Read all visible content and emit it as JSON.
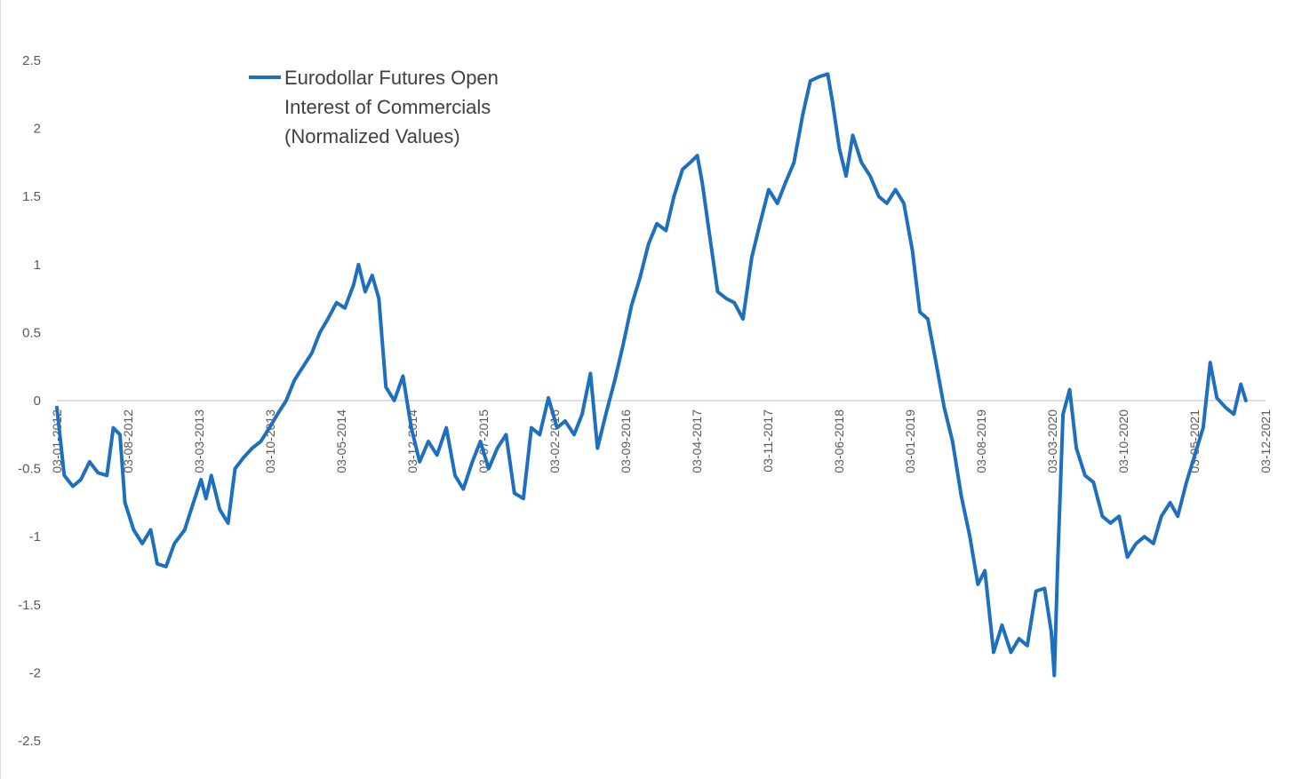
{
  "chart_data": {
    "type": "line",
    "title": "",
    "xlabel": "",
    "ylabel": "",
    "ylim": [
      -2.5,
      2.5
    ],
    "yticks": [
      "2.5",
      "2",
      "1.5",
      "1",
      "0.5",
      "0",
      "-0.5",
      "-1",
      "-1.5",
      "-2",
      "-2.5"
    ],
    "xticks": [
      "03-01-2012",
      "03-08-2012",
      "03-03-2013",
      "03-10-2013",
      "03-05-2014",
      "03-12-2014",
      "03-07-2015",
      "03-02-2016",
      "03-09-2016",
      "03-04-2017",
      "03-11-2017",
      "03-06-2018",
      "03-01-2019",
      "03-08-2019",
      "03-03-2020",
      "03-10-2020",
      "03-05-2021",
      "03-12-2021"
    ],
    "xlim": [
      "2012-01-03",
      "2021-12-03"
    ],
    "grid": false,
    "legend": {
      "position": "top-left",
      "lines": [
        "Eurodollar Futures Open",
        "Interest of Commercials",
        "(Normalized Values)"
      ]
    },
    "series": [
      {
        "name": "Eurodollar Futures Open Interest of Commercials (Normalized Values)",
        "color": "#1f6fbf",
        "points": [
          [
            "2012-01-03",
            -0.05
          ],
          [
            "2012-01-25",
            -0.55
          ],
          [
            "2012-02-20",
            -0.63
          ],
          [
            "2012-03-15",
            -0.58
          ],
          [
            "2012-04-10",
            -0.45
          ],
          [
            "2012-05-05",
            -0.53
          ],
          [
            "2012-06-01",
            -0.55
          ],
          [
            "2012-06-20",
            -0.2
          ],
          [
            "2012-07-10",
            -0.25
          ],
          [
            "2012-07-25",
            -0.75
          ],
          [
            "2012-08-20",
            -0.95
          ],
          [
            "2012-09-15",
            -1.05
          ],
          [
            "2012-10-10",
            -0.95
          ],
          [
            "2012-10-30",
            -1.2
          ],
          [
            "2012-11-25",
            -1.22
          ],
          [
            "2012-12-20",
            -1.05
          ],
          [
            "2013-01-20",
            -0.95
          ],
          [
            "2013-02-15",
            -0.75
          ],
          [
            "2013-03-10",
            -0.58
          ],
          [
            "2013-03-25",
            -0.72
          ],
          [
            "2013-04-10",
            -0.55
          ],
          [
            "2013-05-05",
            -0.8
          ],
          [
            "2013-05-30",
            -0.9
          ],
          [
            "2013-06-20",
            -0.5
          ],
          [
            "2013-07-15",
            -0.42
          ],
          [
            "2013-08-10",
            -0.35
          ],
          [
            "2013-09-05",
            -0.3
          ],
          [
            "2013-10-01",
            -0.2
          ],
          [
            "2013-10-25",
            -0.1
          ],
          [
            "2013-11-20",
            0.0
          ],
          [
            "2013-12-15",
            0.15
          ],
          [
            "2014-01-10",
            0.25
          ],
          [
            "2014-02-05",
            0.35
          ],
          [
            "2014-03-01",
            0.5
          ],
          [
            "2014-03-25",
            0.6
          ],
          [
            "2014-04-20",
            0.72
          ],
          [
            "2014-05-15",
            0.68
          ],
          [
            "2014-06-10",
            0.85
          ],
          [
            "2014-06-25",
            1.0
          ],
          [
            "2014-07-15",
            0.8
          ],
          [
            "2014-08-05",
            0.92
          ],
          [
            "2014-08-25",
            0.75
          ],
          [
            "2014-09-15",
            0.1
          ],
          [
            "2014-10-10",
            0.0
          ],
          [
            "2014-11-05",
            0.18
          ],
          [
            "2014-11-30",
            -0.2
          ],
          [
            "2014-12-25",
            -0.45
          ],
          [
            "2015-01-20",
            -0.3
          ],
          [
            "2015-02-15",
            -0.4
          ],
          [
            "2015-03-15",
            -0.2
          ],
          [
            "2015-04-10",
            -0.55
          ],
          [
            "2015-05-05",
            -0.65
          ],
          [
            "2015-06-01",
            -0.45
          ],
          [
            "2015-06-25",
            -0.3
          ],
          [
            "2015-07-20",
            -0.5
          ],
          [
            "2015-08-15",
            -0.35
          ],
          [
            "2015-09-10",
            -0.25
          ],
          [
            "2015-10-05",
            -0.68
          ],
          [
            "2015-11-01",
            -0.72
          ],
          [
            "2015-11-25",
            -0.2
          ],
          [
            "2015-12-20",
            -0.25
          ],
          [
            "2016-01-15",
            0.02
          ],
          [
            "2016-02-10",
            -0.2
          ],
          [
            "2016-03-05",
            -0.15
          ],
          [
            "2016-04-01",
            -0.25
          ],
          [
            "2016-04-25",
            -0.1
          ],
          [
            "2016-05-20",
            0.2
          ],
          [
            "2016-06-10",
            -0.35
          ],
          [
            "2016-07-05",
            -0.1
          ],
          [
            "2016-08-01",
            0.15
          ],
          [
            "2016-08-25",
            0.4
          ],
          [
            "2016-09-20",
            0.7
          ],
          [
            "2016-10-15",
            0.9
          ],
          [
            "2016-11-10",
            1.15
          ],
          [
            "2016-12-05",
            1.3
          ],
          [
            "2017-01-01",
            1.25
          ],
          [
            "2017-01-25",
            1.5
          ],
          [
            "2017-02-20",
            1.7
          ],
          [
            "2017-03-15",
            1.75
          ],
          [
            "2017-04-05",
            1.8
          ],
          [
            "2017-04-20",
            1.6
          ],
          [
            "2017-05-10",
            1.25
          ],
          [
            "2017-06-05",
            0.8
          ],
          [
            "2017-07-01",
            0.75
          ],
          [
            "2017-07-25",
            0.72
          ],
          [
            "2017-08-20",
            0.6
          ],
          [
            "2017-09-15",
            1.05
          ],
          [
            "2017-10-10",
            1.3
          ],
          [
            "2017-11-05",
            1.55
          ],
          [
            "2017-12-01",
            1.45
          ],
          [
            "2017-12-25",
            1.6
          ],
          [
            "2018-01-20",
            1.75
          ],
          [
            "2018-02-15",
            2.1
          ],
          [
            "2018-03-10",
            2.35
          ],
          [
            "2018-04-05",
            2.38
          ],
          [
            "2018-05-01",
            2.4
          ],
          [
            "2018-05-15",
            2.2
          ],
          [
            "2018-06-05",
            1.85
          ],
          [
            "2018-06-25",
            1.65
          ],
          [
            "2018-07-15",
            1.95
          ],
          [
            "2018-08-10",
            1.75
          ],
          [
            "2018-09-05",
            1.65
          ],
          [
            "2018-10-01",
            1.5
          ],
          [
            "2018-10-25",
            1.45
          ],
          [
            "2018-11-20",
            1.55
          ],
          [
            "2018-12-15",
            1.45
          ],
          [
            "2019-01-10",
            1.1
          ],
          [
            "2019-02-01",
            0.65
          ],
          [
            "2019-02-25",
            0.6
          ],
          [
            "2019-03-20",
            0.3
          ],
          [
            "2019-04-15",
            -0.05
          ],
          [
            "2019-05-10",
            -0.3
          ],
          [
            "2019-06-05",
            -0.7
          ],
          [
            "2019-07-01",
            -1.0
          ],
          [
            "2019-07-25",
            -1.35
          ],
          [
            "2019-08-15",
            -1.25
          ],
          [
            "2019-09-10",
            -1.85
          ],
          [
            "2019-10-05",
            -1.65
          ],
          [
            "2019-11-01",
            -1.85
          ],
          [
            "2019-11-25",
            -1.75
          ],
          [
            "2019-12-20",
            -1.8
          ],
          [
            "2020-01-15",
            -1.4
          ],
          [
            "2020-02-10",
            -1.38
          ],
          [
            "2020-03-01",
            -1.7
          ],
          [
            "2020-03-10",
            -2.02
          ],
          [
            "2020-03-20",
            -1.2
          ],
          [
            "2020-04-05",
            -0.1
          ],
          [
            "2020-04-25",
            0.08
          ],
          [
            "2020-05-15",
            -0.35
          ],
          [
            "2020-06-10",
            -0.55
          ],
          [
            "2020-07-05",
            -0.6
          ],
          [
            "2020-08-01",
            -0.85
          ],
          [
            "2020-08-25",
            -0.9
          ],
          [
            "2020-09-20",
            -0.85
          ],
          [
            "2020-10-15",
            -1.15
          ],
          [
            "2020-11-10",
            -1.05
          ],
          [
            "2020-12-05",
            -1.0
          ],
          [
            "2021-01-01",
            -1.05
          ],
          [
            "2021-01-25",
            -0.85
          ],
          [
            "2021-02-20",
            -0.75
          ],
          [
            "2021-03-15",
            -0.85
          ],
          [
            "2021-04-10",
            -0.6
          ],
          [
            "2021-05-05",
            -0.4
          ],
          [
            "2021-05-30",
            -0.2
          ],
          [
            "2021-06-20",
            0.28
          ],
          [
            "2021-07-10",
            0.02
          ],
          [
            "2021-08-05",
            -0.05
          ],
          [
            "2021-08-30",
            -0.1
          ],
          [
            "2021-09-20",
            0.12
          ],
          [
            "2021-10-05",
            0.0
          ]
        ]
      }
    ]
  }
}
